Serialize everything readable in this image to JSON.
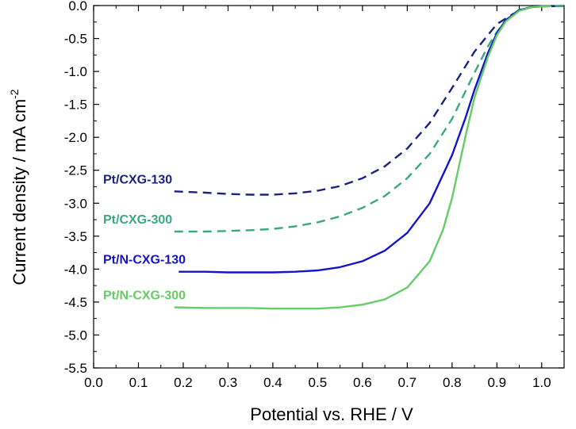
{
  "chart_data": {
    "type": "line",
    "xlabel": "Potential vs. RHE / V",
    "ylabel": "Current density / mA cm",
    "ylabel_sup": "-2",
    "xlim": [
      0.0,
      1.05
    ],
    "ylim": [
      -5.5,
      0.0
    ],
    "x_ticks": [
      "0.0",
      "0.1",
      "0.2",
      "0.3",
      "0.4",
      "0.5",
      "0.6",
      "0.7",
      "0.8",
      "0.9",
      "1.0"
    ],
    "y_ticks": [
      "0.0",
      "-0.5",
      "-1.0",
      "-1.5",
      "-2.0",
      "-2.5",
      "-3.0",
      "-3.5",
      "-4.0",
      "-4.5",
      "-5.0",
      "-5.5"
    ],
    "grid": false,
    "series": [
      {
        "name": "Pt/CXG-130",
        "color": "#1a237e",
        "style": "dashed",
        "x": [
          0.18,
          0.25,
          0.3,
          0.35,
          0.4,
          0.45,
          0.5,
          0.55,
          0.6,
          0.65,
          0.7,
          0.75,
          0.8,
          0.85,
          0.9,
          0.95,
          0.98,
          1.0,
          1.03
        ],
        "y": [
          -2.82,
          -2.84,
          -2.86,
          -2.87,
          -2.87,
          -2.85,
          -2.81,
          -2.74,
          -2.62,
          -2.44,
          -2.17,
          -1.78,
          -1.25,
          -0.7,
          -0.28,
          -0.07,
          -0.02,
          -0.01,
          -0.01
        ]
      },
      {
        "name": "Pt/CXG-300",
        "color": "#3aa882",
        "style": "dashed",
        "x": [
          0.18,
          0.25,
          0.3,
          0.35,
          0.4,
          0.45,
          0.5,
          0.55,
          0.6,
          0.65,
          0.7,
          0.75,
          0.8,
          0.85,
          0.88,
          0.9,
          0.92,
          0.95,
          0.98,
          1.0,
          1.05
        ],
        "y": [
          -3.43,
          -3.43,
          -3.42,
          -3.41,
          -3.39,
          -3.35,
          -3.29,
          -3.2,
          -3.07,
          -2.89,
          -2.62,
          -2.25,
          -1.72,
          -1.02,
          -0.62,
          -0.4,
          -0.22,
          -0.06,
          -0.02,
          -0.01,
          -0.01
        ]
      },
      {
        "name": "Pt/N-CXG-130",
        "color": "#1414c8",
        "style": "solid",
        "x": [
          0.19,
          0.25,
          0.3,
          0.35,
          0.4,
          0.45,
          0.5,
          0.55,
          0.6,
          0.65,
          0.7,
          0.75,
          0.8,
          0.83,
          0.85,
          0.88,
          0.9,
          0.92,
          0.95,
          0.98,
          1.02
        ],
        "y": [
          -4.04,
          -4.04,
          -4.05,
          -4.05,
          -4.05,
          -4.04,
          -4.02,
          -3.97,
          -3.88,
          -3.72,
          -3.45,
          -3.0,
          -2.27,
          -1.7,
          -1.28,
          -0.72,
          -0.42,
          -0.22,
          -0.07,
          -0.02,
          -0.01
        ]
      },
      {
        "name": "Pt/N-CXG-300",
        "color": "#66cc66",
        "style": "solid",
        "x": [
          0.18,
          0.25,
          0.3,
          0.35,
          0.4,
          0.45,
          0.5,
          0.55,
          0.6,
          0.65,
          0.7,
          0.75,
          0.78,
          0.8,
          0.83,
          0.85,
          0.88,
          0.9,
          0.92,
          0.95,
          0.98,
          1.02
        ],
        "y": [
          -4.58,
          -4.59,
          -4.59,
          -4.59,
          -4.6,
          -4.6,
          -4.6,
          -4.58,
          -4.54,
          -4.46,
          -4.28,
          -3.88,
          -3.4,
          -2.92,
          -1.98,
          -1.4,
          -0.78,
          -0.45,
          -0.24,
          -0.08,
          -0.02,
          -0.01
        ]
      }
    ]
  }
}
